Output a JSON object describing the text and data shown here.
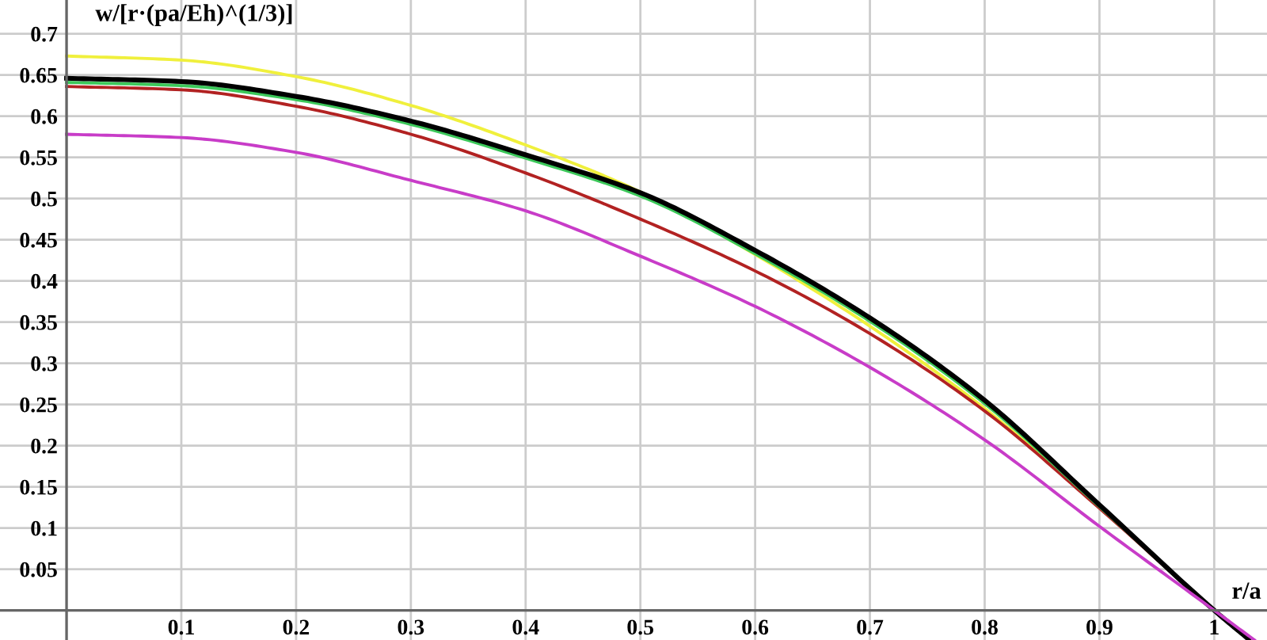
{
  "chart_data": {
    "type": "line",
    "xlabel": "r/a",
    "ylabel": "w/[r·(pa/Eh)^(1/3)]",
    "x": [
      0,
      0.1,
      0.2,
      0.3,
      0.4,
      0.5,
      0.6,
      0.7,
      0.8,
      0.9,
      1.0,
      1.03
    ],
    "series": [
      {
        "color": "#f0f03c",
        "values": [
          0.673,
          0.668,
          0.648,
          0.613,
          0.565,
          0.508,
          0.432,
          0.345,
          0.245,
          0.125,
          null,
          null
        ]
      },
      {
        "color": "#b22222",
        "values": [
          0.636,
          0.632,
          0.612,
          0.578,
          0.531,
          0.475,
          0.412,
          0.336,
          0.242,
          0.124,
          0.0,
          -0.035
        ]
      },
      {
        "color": "#3cc85a",
        "values": [
          0.641,
          0.637,
          0.62,
          0.59,
          0.549,
          0.503,
          0.433,
          0.351,
          0.251,
          0.126,
          0.0,
          -0.035
        ]
      },
      {
        "color": "#000000",
        "values": [
          0.646,
          0.642,
          0.624,
          0.594,
          0.553,
          0.507,
          0.437,
          0.355,
          0.255,
          0.128,
          0.0,
          -0.035
        ]
      },
      {
        "color": "#c83cc8",
        "x": [
          0,
          0.1,
          0.2,
          0.3,
          0.4,
          0.5,
          0.6,
          0.7,
          0.8,
          0.9,
          1.0,
          1.035
        ],
        "values": [
          0.578,
          0.574,
          0.556,
          0.522,
          0.485,
          0.43,
          0.369,
          0.295,
          0.207,
          0.102,
          0.0,
          -0.036
        ]
      }
    ],
    "xlim": [
      -0.058,
      1.046
    ],
    "ylim": [
      -0.036,
      0.741
    ],
    "xticks": [
      0.1,
      0.2,
      0.3,
      0.4,
      0.5,
      0.6,
      0.7,
      0.8,
      0.9,
      1
    ],
    "yticks": [
      0.05,
      0.1,
      0.15,
      0.2,
      0.25,
      0.3,
      0.35,
      0.4,
      0.45,
      0.5,
      0.55,
      0.6,
      0.65,
      0.7
    ],
    "grid": true
  }
}
